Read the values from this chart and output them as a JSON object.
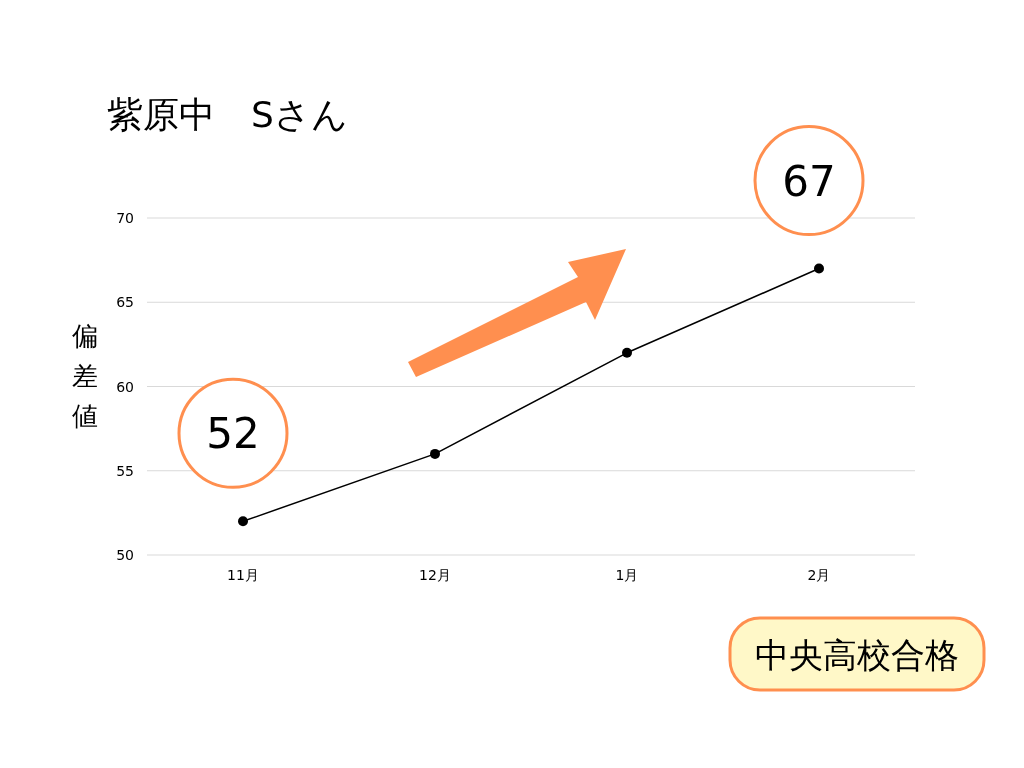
{
  "chart_data": {
    "type": "line",
    "title": "紫原中　Sさん",
    "ylabel": "偏差値",
    "categories": [
      "11月",
      "12月",
      "1月",
      "2月"
    ],
    "values": [
      52,
      56,
      62,
      67
    ],
    "color": "#000000",
    "marker": "circle",
    "ylim": [
      50,
      70
    ],
    "yticks": [
      50,
      55,
      60,
      65,
      70
    ],
    "grid": "y",
    "annotations": [
      {
        "text": "52",
        "x": "11月",
        "y": 52
      },
      {
        "text": "67",
        "x": "2月",
        "y": 67
      },
      "中央高校合格"
    ]
  }
}
